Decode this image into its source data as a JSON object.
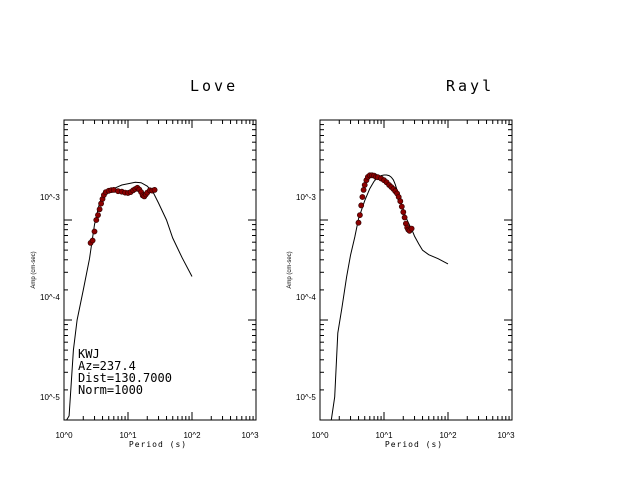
{
  "chart_data": [
    {
      "type": "scatter",
      "title": "Love",
      "xlabel": "Period (s)",
      "ylabel": "Amp (cm-sec)",
      "xscale": "log",
      "yscale": "log",
      "xlim": [
        1,
        1000
      ],
      "ylim": [
        5e-06,
        0.005
      ],
      "x_tick_labels": [
        "10^0",
        "10^1",
        "10^2",
        "10^3"
      ],
      "y_tick_labels": [
        "10^-5",
        "10^-4",
        "10^-3"
      ],
      "annotations": [
        "KWJ",
        "Az=237.4",
        "Dist=130.7000",
        "Norm=1000"
      ],
      "series": [
        {
          "kind": "line",
          "x": [
            1.1,
            1.2,
            1.4,
            1.6,
            2.0,
            2.5,
            3.0,
            3.5,
            4.0,
            5.0,
            6.0,
            8.0,
            10.0,
            13.0,
            16.0,
            20.0,
            25.0,
            30.0,
            40.0,
            50.0,
            70.0,
            100.0
          ],
          "y": [
            5e-06,
            5.5e-06,
            2.5e-05,
            5e-05,
            0.0001,
            0.000205,
            0.00045,
            0.00069,
            0.00089,
            0.00096,
            0.00103,
            0.00112,
            0.00115,
            0.00119,
            0.00118,
            0.00109,
            0.00093,
            0.00074,
            0.0005,
            0.00033,
            0.00021,
            0.000136
          ]
        },
        {
          "kind": "points",
          "x": [
            2.6,
            2.8,
            3.0,
            3.2,
            3.4,
            3.6,
            3.8,
            4.0,
            4.2,
            4.5,
            5.0,
            5.5,
            6.0,
            7.0,
            8.0,
            9.0,
            10.0,
            11.0,
            12.0,
            13.0,
            14.0,
            15.0,
            16.0,
            17.0,
            18.0,
            19.0,
            20.0,
            22.0,
            24.0,
            26.0
          ],
          "y": [
            0.000295,
            0.000312,
            0.000384,
            0.0005,
            0.00056,
            0.00064,
            0.00073,
            0.00081,
            0.00089,
            0.00095,
            0.00098,
            0.000995,
            0.001,
            0.00097,
            0.00096,
            0.00094,
            0.00093,
            0.00095,
            0.00099,
            0.00102,
            0.00105,
            0.00101,
            0.00095,
            0.00088,
            0.00086,
            0.0009,
            0.00094,
            0.00099,
            0.000985,
            0.001
          ]
        }
      ]
    },
    {
      "type": "scatter",
      "title": "Rayl",
      "xlabel": "Period (s)",
      "ylabel": "Amp (cm-sec)",
      "xscale": "log",
      "yscale": "log",
      "xlim": [
        1,
        1000
      ],
      "ylim": [
        5e-06,
        0.005
      ],
      "x_tick_labels": [
        "10^0",
        "10^1",
        "10^2",
        "10^3"
      ],
      "y_tick_labels": [
        "10^-5",
        "10^-4",
        "10^-3"
      ],
      "series": [
        {
          "kind": "line",
          "x": [
            1.5,
            1.7,
            1.9,
            2.2,
            2.6,
            3.0,
            3.5,
            4.0,
            5.0,
            6.0,
            7.0,
            8.0,
            9.0,
            10.0,
            11.0,
            12.0,
            13.0,
            14.0,
            15.0,
            16.0,
            18.0,
            20.0,
            22.0,
            25.0,
            28.0,
            30.0,
            35.0,
            40.0,
            50.0,
            70.0,
            100.0
          ],
          "y": [
            5e-06,
            8.5e-06,
            3.7e-05,
            6.6e-05,
            0.000135,
            0.000222,
            0.000338,
            0.000513,
            0.00078,
            0.00103,
            0.00122,
            0.00134,
            0.00139,
            0.00141,
            0.00141,
            0.00139,
            0.00134,
            0.00126,
            0.00113,
            0.00099,
            0.00079,
            0.00064,
            0.00053,
            0.000445,
            0.000385,
            0.000345,
            0.000288,
            0.00025,
            0.000225,
            0.000205,
            0.000182
          ]
        },
        {
          "kind": "points",
          "x": [
            4.0,
            4.2,
            4.4,
            4.6,
            4.8,
            5.0,
            5.3,
            5.6,
            6.0,
            6.5,
            7.0,
            7.5,
            8.0,
            9.0,
            10.0,
            11.0,
            12.0,
            13.0,
            14.0,
            15.0,
            16.0,
            17.0,
            18.0,
            19.0,
            20.0,
            21.0,
            22.0,
            23.0,
            24.0,
            25.0,
            27.0
          ],
          "y": [
            0.00047,
            0.00056,
            0.0007,
            0.00085,
            0.001,
            0.00112,
            0.00125,
            0.00135,
            0.0014,
            0.0014,
            0.00139,
            0.00135,
            0.00134,
            0.0013,
            0.00125,
            0.00119,
            0.00112,
            0.00107,
            0.00102,
            0.00097,
            0.00092,
            0.00085,
            0.00077,
            0.00068,
            0.0006,
            0.00053,
            0.00046,
            0.00042,
            0.0004,
            0.00039,
            0.00041
          ]
        }
      ]
    }
  ]
}
